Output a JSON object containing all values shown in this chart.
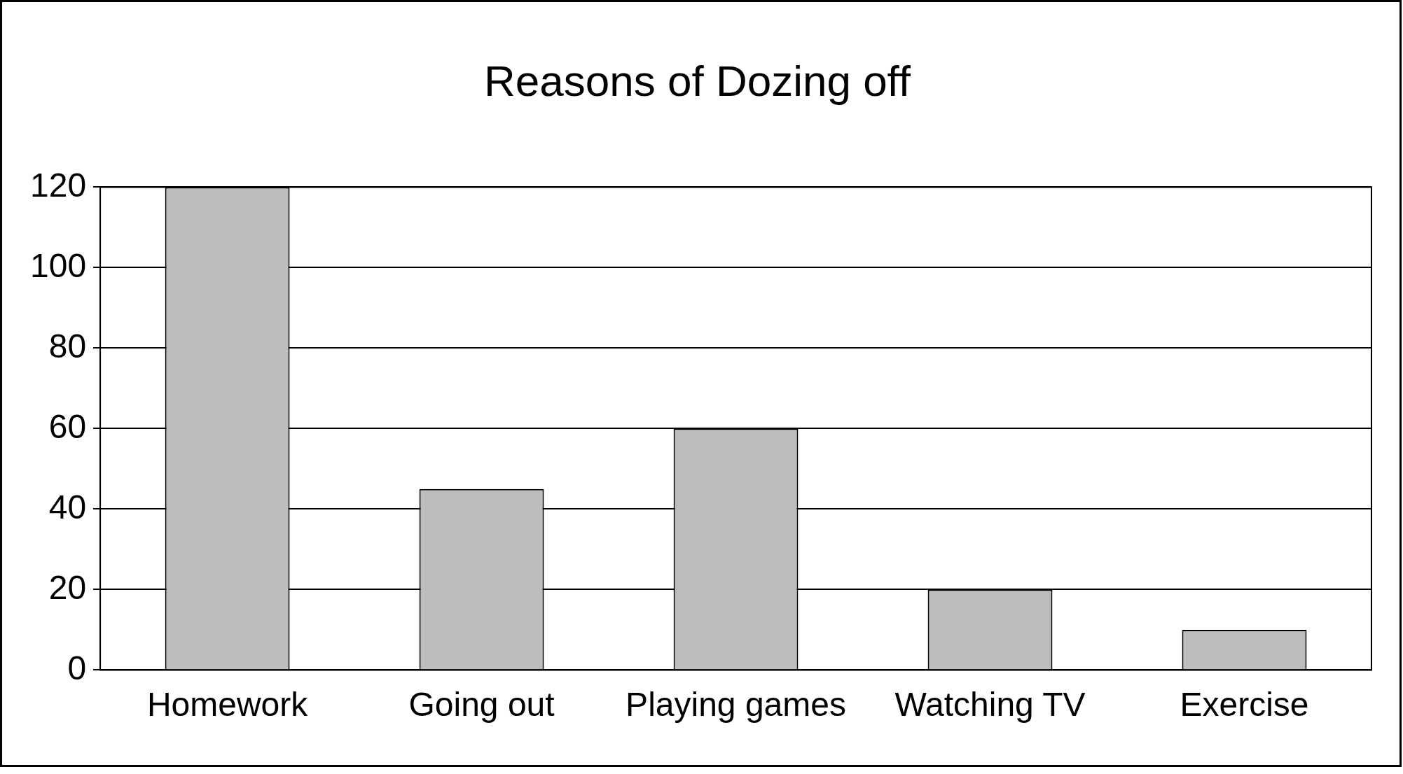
{
  "chart_data": {
    "type": "bar",
    "title": "Reasons of Dozing off",
    "categories": [
      "Homework",
      "Going out",
      "Playing games",
      "Watching TV",
      "Exercise"
    ],
    "values": [
      120,
      45,
      60,
      20,
      10
    ],
    "color": "#bcbdbc",
    "ylim": [
      0,
      120
    ],
    "yticks": [
      0,
      20,
      40,
      60,
      80,
      100,
      120
    ],
    "grid": "y",
    "legend": false
  }
}
